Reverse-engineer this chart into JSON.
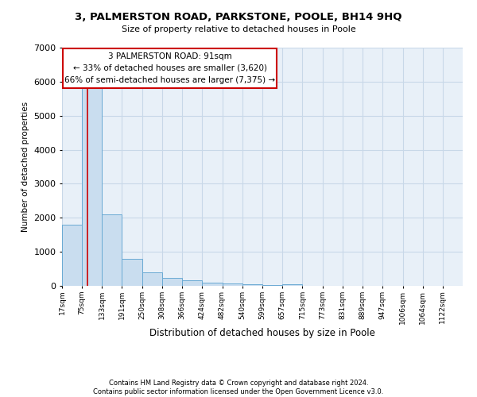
{
  "title_line1": "3, PALMERSTON ROAD, PARKSTONE, POOLE, BH14 9HQ",
  "title_line2": "Size of property relative to detached houses in Poole",
  "xlabel": "Distribution of detached houses by size in Poole",
  "ylabel": "Number of detached properties",
  "bar_color": "#c9ddef",
  "bar_edge_color": "#6aaad4",
  "grid_color": "#c8d8e8",
  "background_color": "#e8f0f8",
  "annotation_box_color": "#cc0000",
  "annotation_text": "3 PALMERSTON ROAD: 91sqm\n← 33% of detached houses are smaller (3,620)\n66% of semi-detached houses are larger (7,375) →",
  "red_line_x": 91,
  "footer_line1": "Contains HM Land Registry data © Crown copyright and database right 2024.",
  "footer_line2": "Contains public sector information licensed under the Open Government Licence v3.0.",
  "bin_edges": [
    17,
    75,
    133,
    191,
    250,
    308,
    366,
    424,
    482,
    540,
    599,
    657,
    715,
    773,
    831,
    889,
    947,
    1006,
    1064,
    1122,
    1180
  ],
  "bar_heights": [
    1800,
    5800,
    2100,
    800,
    400,
    225,
    175,
    100,
    75,
    50,
    30,
    50,
    10,
    5,
    3,
    2,
    2,
    1,
    1,
    1
  ],
  "ylim": [
    0,
    7000
  ],
  "yticks": [
    0,
    1000,
    2000,
    3000,
    4000,
    5000,
    6000,
    7000
  ]
}
